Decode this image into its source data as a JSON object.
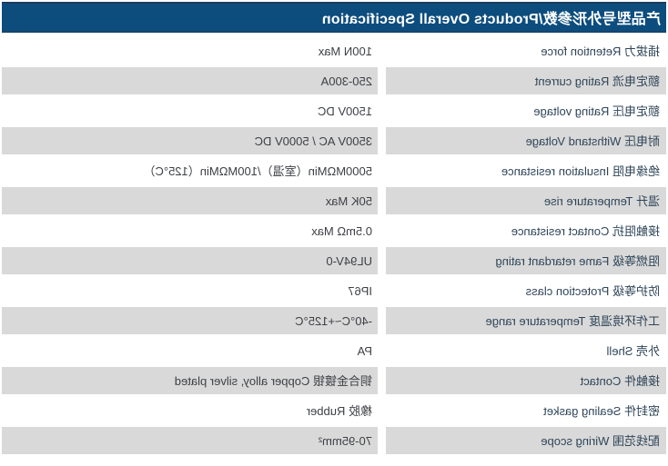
{
  "header": {
    "title": "产品型号外形参数/Products Overall Specification"
  },
  "table": {
    "rows": [
      {
        "label": "插拔力 Retention force",
        "value": "100N Max"
      },
      {
        "label": "额定电流 Rating current",
        "value": "250-300A"
      },
      {
        "label": "额定电压 Rating voltage",
        "value": "1500V DC"
      },
      {
        "label": "耐电压 Withstand Voltage",
        "value": "3500V AC / 5000V DC"
      },
      {
        "label": "绝缘电阻 Insulation resistance",
        "value": "5000MΩMin（室温）/100MΩMin（125°C）"
      },
      {
        "label": "温升 Temperature rise",
        "value": "50K Max"
      },
      {
        "label": "接触阻抗 Contact resistance",
        "value": "0.5mΩ Max"
      },
      {
        "label": "阻燃等级 Fame retardant rating",
        "value": "UL94V-0"
      },
      {
        "label": "防护等级 Protection class",
        "value": "IP67"
      },
      {
        "label": "工作环境温度 Temperature range",
        "value": "-40°C~+125°C"
      },
      {
        "label": "外壳 Shell",
        "value": "PA"
      },
      {
        "label": "接触件 Contact",
        "value": "铜合金镀银 Copper alloy, silver plated"
      },
      {
        "label": "密封件 Sealing gasket",
        "value": "橡胶 Rubber"
      },
      {
        "label": "配线范围 Wiring scope",
        "value": "70-95mm²"
      }
    ]
  },
  "colors": {
    "header_bar": "#0d4d7e",
    "header_accent_line": "#1d3d5e",
    "zebra_row": "#d9d9d9",
    "label_text": "#2f4558",
    "value_text": "#3d4045"
  },
  "presentation_note": "image is horizontally mirrored"
}
